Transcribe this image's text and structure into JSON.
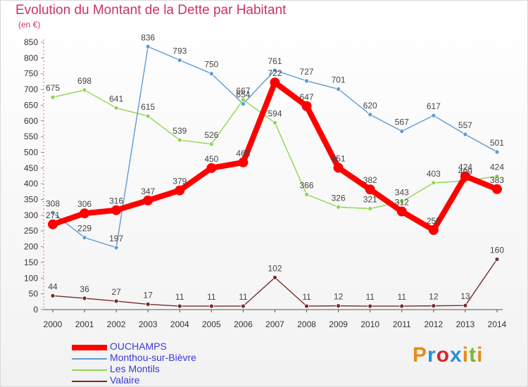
{
  "title": "Evolution du Montant de la Dette par Habitant",
  "unit": "(en €)",
  "logo": {
    "text": "Proxiti",
    "colors": [
      "#e58c1c",
      "#2a8fd6",
      "#d6262e",
      "#2a8fd6",
      "#e58c1c",
      "#7ab82b",
      "#e58c1c"
    ]
  },
  "chart_data": {
    "type": "line",
    "x": [
      "2000",
      "2001",
      "2002",
      "2003",
      "2004",
      "2005",
      "2006",
      "2007",
      "2008",
      "2009",
      "2010",
      "2011",
      "2012",
      "2013",
      "2014"
    ],
    "ylim": [
      0,
      850
    ],
    "yticks": [
      0,
      50,
      100,
      150,
      200,
      250,
      300,
      350,
      400,
      450,
      500,
      550,
      600,
      650,
      700,
      750,
      800,
      850
    ],
    "grid": false,
    "legend_position": "bottom-left",
    "series": [
      {
        "name": "OUCHAMPS",
        "color": "#ff0000",
        "values": [
          271,
          306,
          316,
          347,
          379,
          450,
          468,
          722,
          647,
          451,
          382,
          312,
          253,
          424,
          383
        ],
        "labels": [
          "271",
          "306",
          "316",
          "347",
          "379",
          "450",
          "468",
          "722",
          "647",
          "451",
          "382",
          "312",
          "253",
          "424",
          "383"
        ]
      },
      {
        "name": "Monthou-sur-Bièvre",
        "color": "#5b9bd5",
        "values": [
          308,
          229,
          197,
          836,
          793,
          750,
          654,
          761,
          727,
          701,
          620,
          567,
          617,
          557,
          501
        ],
        "labels": [
          "308",
          "229",
          "197",
          "836",
          "793",
          "750",
          "654",
          "761",
          "727",
          "701",
          "620",
          "567",
          "617",
          "557",
          "501"
        ]
      },
      {
        "name": "Les Montils",
        "color": "#8ed64e",
        "values": [
          675,
          698,
          641,
          615,
          539,
          526,
          667,
          594,
          366,
          326,
          321,
          343,
          403,
          409,
          424
        ],
        "labels": [
          "675",
          "698",
          "641",
          "615",
          "539",
          "526",
          "667",
          "594",
          "366",
          "326",
          "321",
          "343",
          "403",
          "409",
          "424"
        ]
      },
      {
        "name": "Valaire",
        "color": "#7a2a2a",
        "values": [
          44,
          36,
          27,
          17,
          11,
          11,
          11,
          102,
          11,
          12,
          11,
          11,
          12,
          13,
          160
        ],
        "labels": [
          "44",
          "36",
          "27",
          "17",
          "11",
          "11",
          "11",
          "102",
          "11",
          "12",
          "11",
          "11",
          "12",
          "13",
          "160"
        ]
      }
    ]
  }
}
